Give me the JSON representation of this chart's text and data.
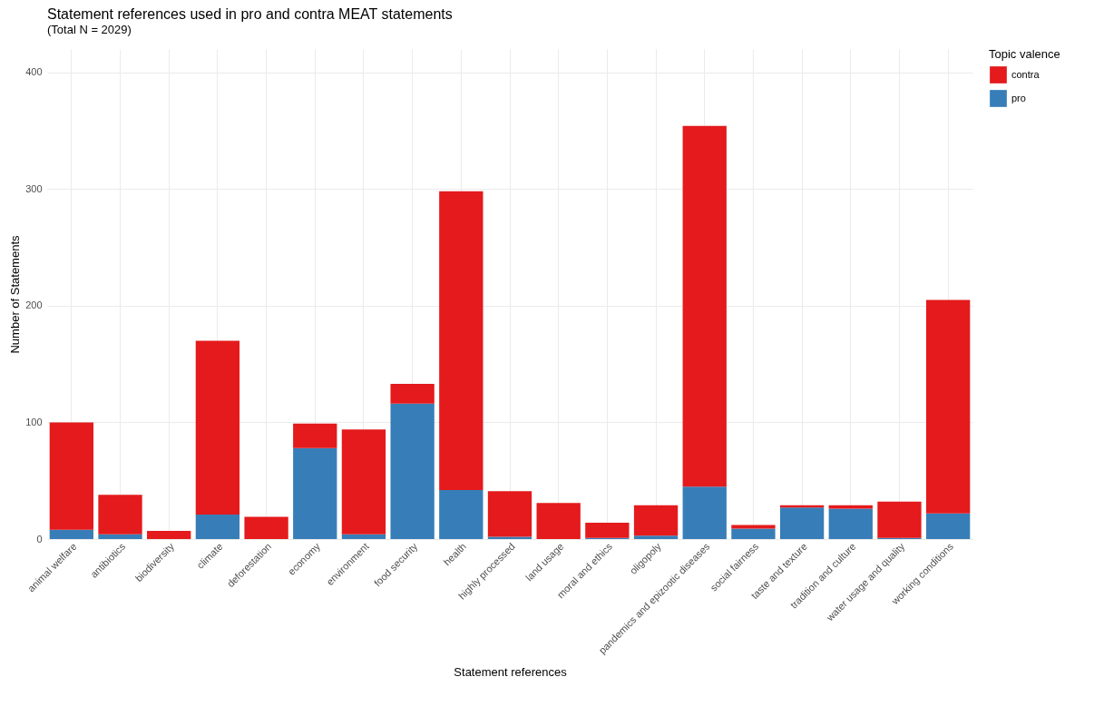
{
  "chart_data": {
    "type": "bar",
    "title": "Statement references used in pro and contra MEAT statements",
    "subtitle": "(Total N = 2029)",
    "xlabel": "Statement references",
    "ylabel": "Number of Statements",
    "legend_title": "Topic valence",
    "categories": [
      "animal welfare",
      "antibiotics",
      "biodiversity",
      "climate",
      "deforestation",
      "economy",
      "environment",
      "food security",
      "health",
      "highly processed",
      "land usage",
      "moral and ethics",
      "oligopoly",
      "pandemics and epizootic diseases",
      "social fairness",
      "taste and texture",
      "tradition and culture",
      "water usage and quality",
      "working conditions"
    ],
    "stacked": true,
    "series": [
      {
        "name": "pro",
        "color": "#377eb8",
        "values": [
          8,
          4,
          0,
          21,
          0,
          78,
          4,
          116,
          42,
          2,
          0,
          1,
          3,
          45,
          9,
          27,
          26,
          1,
          22
        ]
      },
      {
        "name": "contra",
        "color": "#e41a1c",
        "values": [
          92,
          34,
          7,
          149,
          19,
          21,
          90,
          17,
          256,
          39,
          31,
          13,
          26,
          309,
          3,
          2,
          3,
          31,
          183
        ]
      }
    ],
    "ylim": [
      0,
      420
    ],
    "yticks": [
      0,
      100,
      200,
      300,
      400
    ],
    "grid": true,
    "legend": "right"
  }
}
